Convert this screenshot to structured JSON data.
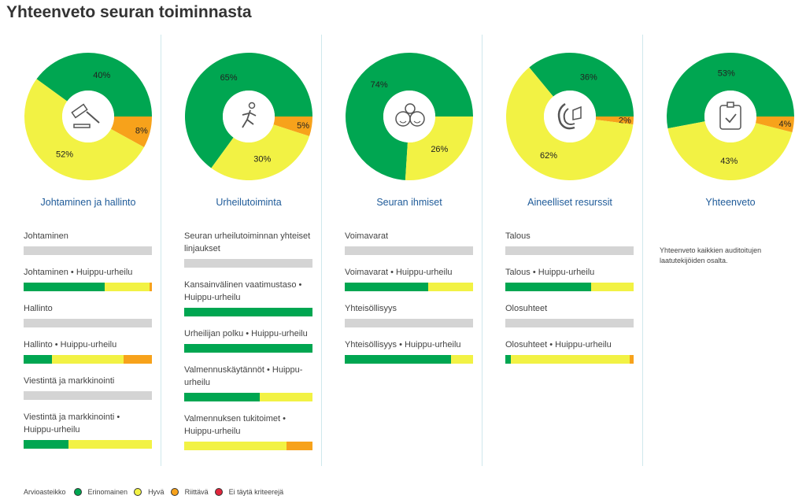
{
  "title": "Yhteenveto seuran toiminnasta",
  "colors": {
    "erinomainen": "#00a651",
    "hyva": "#f2f244",
    "riittava": "#f7a21b",
    "ei": "#e0263c",
    "empty": "#d4d4d4"
  },
  "columns": [
    {
      "title": "Johtaminen ja hallinto",
      "icon": "gavel-icon",
      "donut": {
        "green": 40,
        "orange": 8,
        "yellow": 52
      },
      "labels": [
        "40%",
        "8%",
        "52%"
      ],
      "items": [
        {
          "label": "Johtaminen",
          "bar": []
        },
        {
          "label": "Johtaminen • Huippu-urheilu",
          "bar": [
            63,
            35,
            2
          ]
        },
        {
          "label": "Hallinto",
          "bar": []
        },
        {
          "label": "Hallinto • Huippu-urheilu",
          "bar": [
            22,
            56,
            22
          ]
        },
        {
          "label": "Viestintä ja markkinointi",
          "bar": []
        },
        {
          "label": "Viestintä ja markkinointi • Huippu-urheilu",
          "bar": [
            35,
            65,
            0
          ]
        }
      ]
    },
    {
      "title": "Urheilutoiminta",
      "icon": "runner-icon",
      "donut": {
        "green": 65,
        "orange": 5,
        "yellow": 30
      },
      "labels": [
        "65%",
        "5%",
        "30%"
      ],
      "items": [
        {
          "label": "Seuran urheilutoiminnan yhteiset linjaukset",
          "bar": []
        },
        {
          "label": "Kansainvälinen vaatimustaso • Huippu-urheilu",
          "bar": [
            100,
            0,
            0
          ]
        },
        {
          "label": "Urheilijan polku • Huippu-urheilu",
          "bar": [
            100,
            0,
            0
          ]
        },
        {
          "label": "Valmennuskäytännöt • Huippu-urheilu",
          "bar": [
            59,
            41,
            0
          ]
        },
        {
          "label": "Valmennuksen tukitoimet • Huippu-urheilu",
          "bar": [
            0,
            80,
            20
          ]
        }
      ]
    },
    {
      "title": "Seuran ihmiset",
      "icon": "smiley-faces-icon",
      "donut": {
        "green": 74,
        "orange": 0,
        "yellow": 26
      },
      "labels": [
        "74%",
        "",
        "26%"
      ],
      "items": [
        {
          "label": "Voimavarat",
          "bar": []
        },
        {
          "label": "Voimavarat • Huippu-urheilu",
          "bar": [
            65,
            35,
            0
          ]
        },
        {
          "label": "Yhteisöllisyys",
          "bar": []
        },
        {
          "label": "Yhteisöllisyys • Huippu-urheilu",
          "bar": [
            83,
            17,
            0
          ]
        }
      ]
    },
    {
      "title": "Aineelliset resurssit",
      "icon": "resources-icon",
      "donut": {
        "green": 36,
        "orange": 2,
        "yellow": 62
      },
      "labels": [
        "36%",
        "2%",
        "62%"
      ],
      "items": [
        {
          "label": "Talous",
          "bar": []
        },
        {
          "label": "Talous • Huippu-urheilu",
          "bar": [
            67,
            33,
            0
          ]
        },
        {
          "label": "Olosuhteet",
          "bar": []
        },
        {
          "label": "Olosuhteet • Huippu-urheilu",
          "bar": [
            4,
            93,
            3
          ]
        }
      ]
    },
    {
      "title": "Yhteenveto",
      "icon": "clipboard-check-icon",
      "donut": {
        "green": 53,
        "orange": 4,
        "yellow": 43
      },
      "labels": [
        "53%",
        "4%",
        "43%"
      ],
      "description": "Yhteenveto kaikkien auditoitujen laatutekijöiden osalta.",
      "items": []
    }
  ],
  "legend": {
    "title": "Arvioasteikko",
    "items": [
      {
        "label": "Erinomainen",
        "color": "#00a651"
      },
      {
        "label": "Hyvä",
        "color": "#f2f244"
      },
      {
        "label": "Riittävä",
        "color": "#f7a21b"
      },
      {
        "label": "Ei täytä kriteerejä",
        "color": "#e0263c"
      }
    ]
  }
}
